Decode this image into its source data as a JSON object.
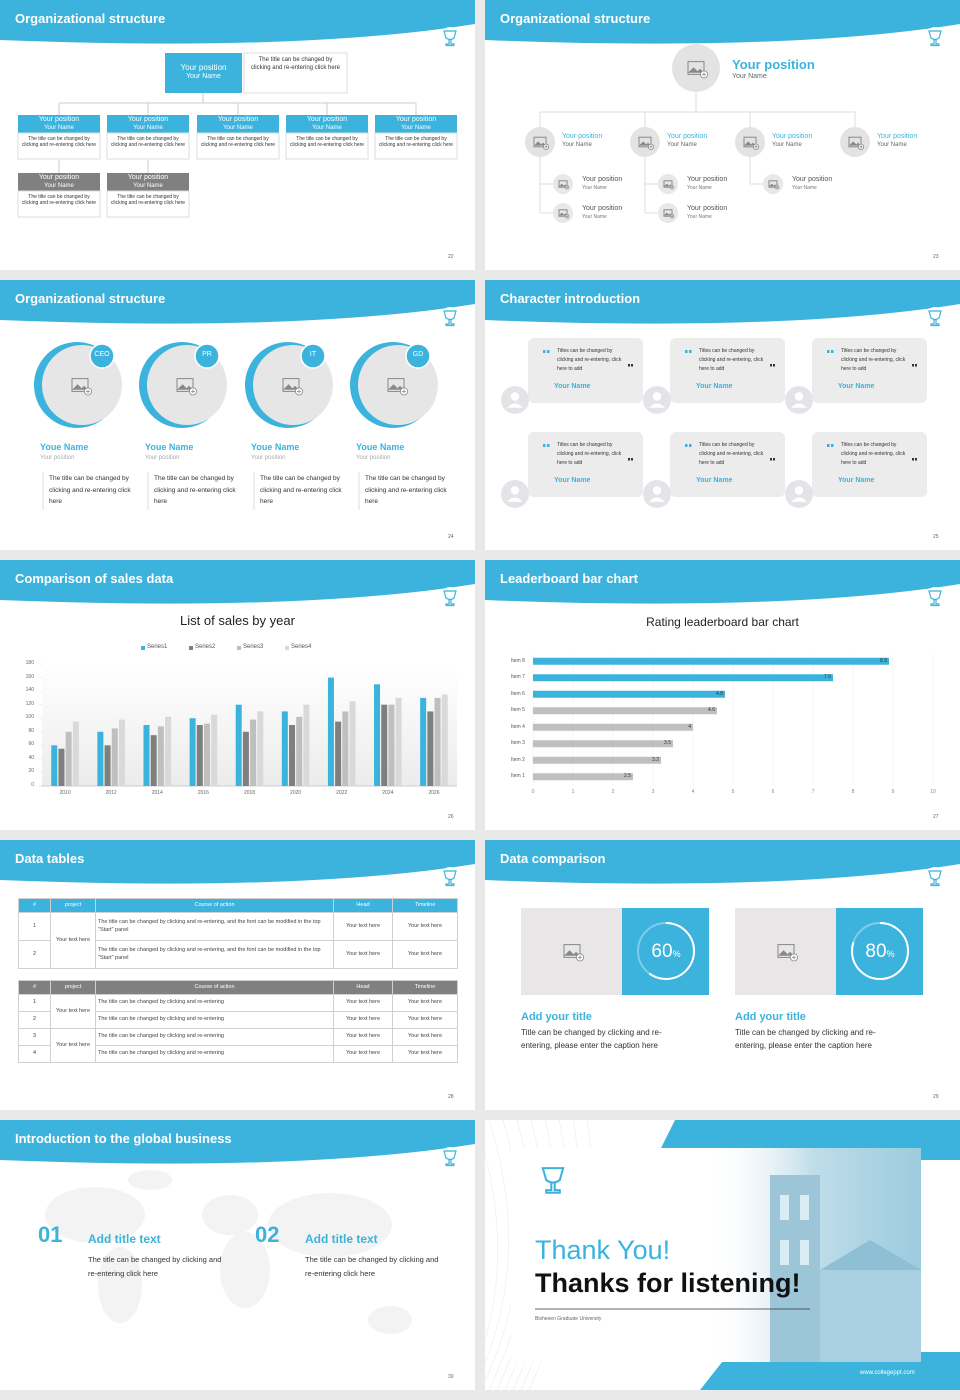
{
  "slides": [
    {
      "title": "Organizational structure",
      "page": "22",
      "top": {
        "position": "Your position",
        "name": "Your Name",
        "desc": "The title can be changed by clicking and re-entering click here"
      },
      "boxes": [
        {
          "position": "Your position",
          "name": "Your Name",
          "desc": "The title can be changed by clicking and re-entering click here"
        },
        {
          "position": "Your position",
          "name": "Your Name",
          "desc": "The title can be changed by clicking and re-entering click here"
        },
        {
          "position": "Your position",
          "name": "Your Name",
          "desc": "The title can be changed by clicking and re-entering click here"
        },
        {
          "position": "Your position",
          "name": "Your Name",
          "desc": "The title can be changed by clicking and re-entering click here"
        },
        {
          "position": "Your position",
          "name": "Your Name",
          "desc": "The title can be changed by clicking and re-entering click here"
        },
        {
          "position": "Your position",
          "name": "Your Name",
          "desc": "The title can be changed by clicking and re-entering click here"
        },
        {
          "position": "Your position",
          "name": "Your Name",
          "desc": "The title can be changed by clicking and re-entering click here"
        }
      ]
    },
    {
      "title": "Organizational structure",
      "page": "23",
      "top": {
        "position": "Your position",
        "name": "Your Name"
      },
      "level2": [
        {
          "position": "Your position",
          "name": "Your Name"
        },
        {
          "position": "Your position",
          "name": "Your Name"
        },
        {
          "position": "Your position",
          "name": "Your Name"
        },
        {
          "position": "Your position",
          "name": "Your Name"
        }
      ],
      "level3": [
        {
          "position": "Your position",
          "name": "Your Name"
        },
        {
          "position": "Your position",
          "name": "Your Name"
        },
        {
          "position": "Your position",
          "name": "Your Name"
        },
        {
          "position": "Your position",
          "name": "Your Name"
        },
        {
          "position": "Your position",
          "name": "Your Name"
        }
      ]
    },
    {
      "title": "Organizational structure",
      "page": "24",
      "people": [
        {
          "badge": "CEO",
          "name": "Youe Name",
          "position": "Your position",
          "desc": "The title can be changed by clicking and re-entering click here"
        },
        {
          "badge": "PR",
          "name": "Youe Name",
          "position": "Your position",
          "desc": "The title can be changed by clicking and re-entering click here"
        },
        {
          "badge": "IT",
          "name": "Youe Name",
          "position": "Your position",
          "desc": "The title can be changed by clicking and re-entering click here"
        },
        {
          "badge": "GD",
          "name": "Youe Name",
          "position": "Your position",
          "desc": "The title can be changed by clicking and re-entering click here"
        }
      ]
    },
    {
      "title": "Character introduction",
      "page": "25",
      "cards": [
        {
          "text": "Titles can be changed by clicking and re-entering, click here to add",
          "name": "Your Name"
        },
        {
          "text": "Titles can be changed by clicking and re-entering, click here to add",
          "name": "Your Name"
        },
        {
          "text": "Titles can be changed by clicking and re-entering, click here to add",
          "name": "Your Name"
        },
        {
          "text": "Titles can be changed by clicking and re-entering, click here to add",
          "name": "Your Name"
        },
        {
          "text": "Titles can be changed by clicking and re-entering, click here to add",
          "name": "Your Name"
        },
        {
          "text": "Titles can be changed by clicking and re-entering, click here to add",
          "name": "Your Name"
        }
      ]
    },
    {
      "title": "Comparison of sales data",
      "page": "26"
    },
    {
      "title": "Leaderboard bar chart",
      "page": "27"
    },
    {
      "title": "Data tables",
      "page": "28",
      "table1": {
        "header": [
          "#",
          "project",
          "Course of action",
          "Head",
          "Timeline"
        ],
        "project": "Your text here",
        "rows": [
          {
            "num": "1",
            "action": "The title can be changed by clicking and re-entering, and the font can be modified in the top \"Start\" panel",
            "head": "Your text here",
            "timeline": "Your text here"
          },
          {
            "num": "2",
            "action": "The title can be changed by clicking and re-entering, and the font can be modified in the top \"Start\" panel",
            "head": "Your text here",
            "timeline": "Your text here"
          }
        ]
      },
      "table2": {
        "header": [
          "#",
          "project",
          "Course of action",
          "Head",
          "Timeline"
        ],
        "projects": [
          "Your text here",
          "Your text here"
        ],
        "rows": [
          {
            "num": "1",
            "action": "The title can be changed by clicking and re-entering",
            "head": "Your text here",
            "timeline": "Your text here"
          },
          {
            "num": "2",
            "action": "The title can be changed by clicking and re-entering",
            "head": "Your text here",
            "timeline": "Your text here"
          },
          {
            "num": "3",
            "action": "The title can be changed by clicking and re-entering",
            "head": "Your text here",
            "timeline": "Your text here"
          },
          {
            "num": "4",
            "action": "The title can be changed by clicking and re-entering",
            "head": "Your text here",
            "timeline": "Your text here"
          }
        ]
      }
    },
    {
      "title": "Data comparison",
      "page": "29",
      "items": [
        {
          "value": 60,
          "unit": "%",
          "title": "Add your title",
          "text": "Title can be changed by clicking and re-entering, please enter the caption here"
        },
        {
          "value": 80,
          "unit": "%",
          "title": "Add your title",
          "text": "Title can be changed by clicking and re-entering, please enter the caption here"
        }
      ]
    },
    {
      "title": "Introduction to the global business",
      "page": "30",
      "items": [
        {
          "num": "01",
          "title": "Add title text",
          "text": "The title can be changed by clicking and re-entering click here"
        },
        {
          "num": "02",
          "title": "Add title text",
          "text": "The title can be changed by clicking and re-entering click here"
        }
      ]
    },
    {
      "thanks": "Thank You!",
      "subtitle": "Thanks for listening!",
      "university": "Bisheeen Graduate University",
      "url": "www.collegeppt.com"
    }
  ],
  "chart_data": [
    {
      "type": "bar",
      "title": "List of sales by year",
      "legend": "top",
      "categories": [
        "2010",
        "2012",
        "2014",
        "2016",
        "2018",
        "2020",
        "2022",
        "2024",
        "2026"
      ],
      "series": [
        {
          "name": "Series1",
          "color": "#3bb3dc",
          "values": [
            60,
            80,
            90,
            100,
            120,
            110,
            160,
            150,
            130
          ]
        },
        {
          "name": "Series2",
          "color": "#7f7f7f",
          "values": [
            55,
            60,
            75,
            90,
            80,
            90,
            95,
            120,
            110
          ]
        },
        {
          "name": "Series3",
          "color": "#bfbfbf",
          "values": [
            80,
            85,
            88,
            92,
            98,
            102,
            110,
            120,
            130
          ]
        },
        {
          "name": "Series4",
          "color": "#d9d9d9",
          "values": [
            95,
            98,
            102,
            105,
            110,
            120,
            125,
            130,
            135
          ]
        }
      ],
      "ylim": [
        0,
        180
      ],
      "yticks": [
        0,
        20,
        40,
        60,
        80,
        100,
        120,
        140,
        160,
        180
      ],
      "grid": false
    },
    {
      "type": "hbar",
      "title": "Rating leaderboard bar chart",
      "categories": [
        "Item 1",
        "Item 2",
        "Item 3",
        "Item 4",
        "Item 5",
        "Item 6",
        "Item 7",
        "Item 8"
      ],
      "values": [
        2.5,
        3.2,
        3.5,
        4,
        4.6,
        4.8,
        7.5,
        8.9
      ],
      "colors": [
        "#bfbfbf",
        "#bfbfbf",
        "#bfbfbf",
        "#bfbfbf",
        "#bfbfbf",
        "#3bb3dc",
        "#3bb3dc",
        "#3bb3dc"
      ],
      "xlim": [
        0,
        10
      ],
      "xticks": [
        0,
        1,
        2,
        3,
        4,
        5,
        6,
        7,
        8,
        9,
        10
      ],
      "grid": true
    }
  ]
}
